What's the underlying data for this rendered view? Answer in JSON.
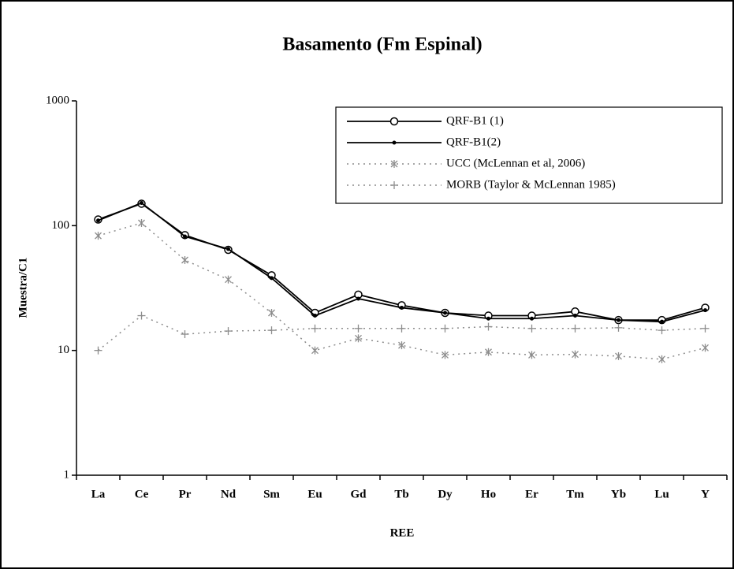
{
  "chart_data": {
    "type": "line",
    "title": "Basamento (Fm Espinal)",
    "x_label": "REE",
    "y_label": "Muestra/C1",
    "categories": [
      "La",
      "Ce",
      "Pr",
      "Nd",
      "Sm",
      "Eu",
      "Gd",
      "Tb",
      "Dy",
      "Ho",
      "Er",
      "Tm",
      "Yb",
      "Lu",
      "Y"
    ],
    "ylim": [
      1,
      1000
    ],
    "yticks": [
      1,
      10,
      100,
      1000
    ],
    "log_y": true,
    "grid": false,
    "legend": "upper right",
    "series": [
      {
        "name": "QRF-B1 (1)",
        "color": "#000000",
        "marker": "circle",
        "dash": "solid",
        "values": [
          112,
          150,
          84,
          64,
          40,
          20,
          28,
          23,
          20,
          19,
          19,
          20.5,
          17.5,
          17.5,
          22
        ]
      },
      {
        "name": "QRF-B1(2)",
        "color": "#000000",
        "marker": "dot",
        "dash": "solid",
        "values": [
          110,
          152,
          82,
          65,
          38,
          19,
          26,
          22,
          20,
          18,
          18,
          19,
          17.5,
          17,
          21
        ]
      },
      {
        "name": "UCC (McLennan et al, 2006)",
        "color": "#8c8c8c",
        "marker": "asterisk",
        "dash": "dotted",
        "values": [
          83,
          105,
          53,
          37,
          20,
          10,
          12.5,
          11,
          9.2,
          9.7,
          9.2,
          9.3,
          9,
          8.5,
          10.5
        ]
      },
      {
        "name": "MORB (Taylor & McLennan 1985)",
        "color": "#8c8c8c",
        "marker": "plus",
        "dash": "dotted",
        "values": [
          10,
          19,
          13.5,
          14.3,
          14.5,
          15,
          15,
          15,
          15,
          15.5,
          15,
          15,
          15.2,
          14.5,
          15
        ]
      }
    ]
  }
}
